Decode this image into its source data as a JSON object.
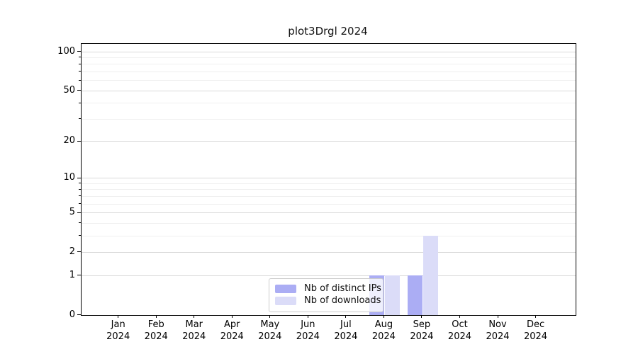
{
  "title": "plot3Drgl 2024",
  "year_label": "2024",
  "chart_data": {
    "type": "bar",
    "title": "plot3Drgl 2024",
    "categories": [
      "Jan",
      "Feb",
      "Mar",
      "Apr",
      "May",
      "Jun",
      "Jul",
      "Aug",
      "Sep",
      "Oct",
      "Nov",
      "Dec"
    ],
    "year_label": "2024",
    "series": [
      {
        "name": "Nb of distinct IPs",
        "color": "#abadf4",
        "values": [
          0,
          0,
          0,
          0,
          0,
          0,
          0,
          1,
          1,
          0,
          0,
          0
        ]
      },
      {
        "name": "Nb of downloads",
        "color": "#dbdcf8",
        "values": [
          0,
          0,
          0,
          0,
          0,
          0,
          0,
          1,
          3,
          0,
          0,
          0
        ]
      }
    ],
    "xlabel": "",
    "ylabel": "",
    "y_axis": {
      "scale": "log1p",
      "major_ticks": [
        0,
        1,
        2,
        5,
        10,
        20,
        50,
        100
      ],
      "minor_ticks": [
        3,
        4,
        6,
        7,
        8,
        9,
        30,
        40,
        60,
        70,
        80,
        90
      ],
      "range": [
        0,
        115
      ]
    },
    "grid": "horizontal",
    "legend": {
      "position": "bottom-center",
      "entries": [
        "Nb of distinct IPs",
        "Nb of downloads"
      ]
    }
  },
  "colors": {
    "axis": "#000000",
    "grid_major": "#d9d9d9",
    "grid_minor": "#efefef",
    "legend_border": "#cccccc"
  }
}
